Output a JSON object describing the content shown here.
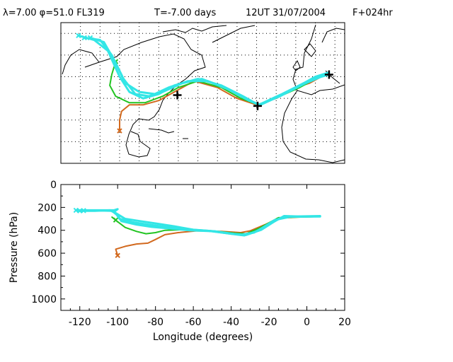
{
  "header": {
    "title": "λ=7.00 φ=51.0 FL319",
    "time_offset": "T=-7.00 days",
    "valid_time": "12UT 31/07/2004",
    "forecast": "F+024hr"
  },
  "colors": {
    "background": "#ffffff",
    "axes": "#000000",
    "series_orange": "#d2691e",
    "series_green": "#22c422",
    "series_cyan": "#33e6e6",
    "markers": "#000000"
  },
  "chart_data": [
    {
      "type": "map",
      "title": "",
      "projection": "lon-lat",
      "xlim": [
        -130,
        15
      ],
      "ylim": [
        10,
        75
      ],
      "grid": true,
      "grid_style": "dotted",
      "landmarks": [
        {
          "lon": 7.0,
          "lat": 51.0
        },
        {
          "lon": -29.5,
          "lat": 36.5
        },
        {
          "lon": -70.5,
          "lat": 41.5
        }
      ],
      "series": [
        {
          "color": "orange",
          "points": [
            [
              -100,
              25
            ],
            [
              -100,
              30
            ],
            [
              -99,
              34
            ],
            [
              -95,
              37
            ],
            [
              -88,
              37
            ],
            [
              -80,
              39
            ],
            [
              -72,
              43
            ],
            [
              -62,
              48
            ],
            [
              -50,
              45
            ],
            [
              -40,
              40
            ],
            [
              -30,
              37
            ],
            [
              -20,
              40
            ],
            [
              -10,
              45
            ],
            [
              -3,
              47
            ],
            [
              5,
              51
            ]
          ]
        },
        {
          "color": "green",
          "points": [
            [
              -102,
              57
            ],
            [
              -104,
              51
            ],
            [
              -105,
              46
            ],
            [
              -102,
              41
            ],
            [
              -95,
              38
            ],
            [
              -87,
              38
            ],
            [
              -78,
              41
            ],
            [
              -70,
              45
            ],
            [
              -60,
              48
            ],
            [
              -48,
              45
            ],
            [
              -38,
              40
            ],
            [
              -29,
              37
            ],
            [
              -18,
              41
            ],
            [
              -8,
              45
            ],
            [
              0,
              49
            ],
            [
              6,
              51
            ]
          ]
        },
        {
          "color": "cyan",
          "points": [
            [
              -121,
              69
            ],
            [
              -113,
              67
            ],
            [
              -106,
              62
            ],
            [
              -100,
              50
            ],
            [
              -95,
              43
            ],
            [
              -88,
              40
            ],
            [
              -80,
              42
            ],
            [
              -72,
              46
            ],
            [
              -60,
              49
            ],
            [
              -48,
              46
            ],
            [
              -37,
              41
            ],
            [
              -29,
              37
            ],
            [
              -18,
              41
            ],
            [
              -8,
              46
            ],
            [
              0,
              50
            ],
            [
              7,
              52
            ]
          ]
        },
        {
          "color": "cyan",
          "points": [
            [
              -118,
              68
            ],
            [
              -110,
              67
            ],
            [
              -104,
              60
            ],
            [
              -98,
              49
            ],
            [
              -92,
              42
            ],
            [
              -85,
              41
            ],
            [
              -78,
              43
            ],
            [
              -68,
              47
            ],
            [
              -58,
              49
            ],
            [
              -46,
              45
            ],
            [
              -36,
              40
            ],
            [
              -29,
              37
            ],
            [
              -17,
              42
            ],
            [
              -6,
              47
            ],
            [
              2,
              50
            ],
            [
              7,
              51
            ]
          ]
        },
        {
          "color": "cyan",
          "points": [
            [
              -115,
              68
            ],
            [
              -108,
              66
            ],
            [
              -103,
              58
            ],
            [
              -97,
              47
            ],
            [
              -90,
              43
            ],
            [
              -82,
              42
            ],
            [
              -75,
              45
            ],
            [
              -65,
              48
            ],
            [
              -55,
              48
            ],
            [
              -44,
              44
            ],
            [
              -34,
              39
            ],
            [
              -28,
              37
            ],
            [
              -16,
              42
            ],
            [
              -5,
              47
            ],
            [
              3,
              50
            ],
            [
              7,
              51
            ]
          ]
        }
      ]
    },
    {
      "type": "line",
      "title": "",
      "xlabel": "Longitude  (degrees)",
      "ylabel": "Pressure  (hPa)",
      "xlim": [
        -130,
        20
      ],
      "ylim": [
        1100,
        0
      ],
      "grid": false,
      "x_ticks": [
        -120,
        -100,
        -80,
        -60,
        -40,
        -20,
        0,
        20
      ],
      "y_ticks": [
        0,
        200,
        400,
        600,
        800,
        1000
      ],
      "series": [
        {
          "color": "orange",
          "points": [
            [
              -100,
              620
            ],
            [
              -101,
              565
            ],
            [
              -96,
              540
            ],
            [
              -90,
              520
            ],
            [
              -84,
              512
            ],
            [
              -80,
              480
            ],
            [
              -75,
              438
            ],
            [
              -68,
              420
            ],
            [
              -58,
              405
            ],
            [
              -45,
              410
            ],
            [
              -35,
              420
            ],
            [
              -30,
              405
            ],
            [
              -22,
              350
            ],
            [
              -15,
              295
            ],
            [
              -5,
              285
            ],
            [
              7,
              280
            ]
          ]
        },
        {
          "color": "green",
          "points": [
            [
              -101,
              310
            ],
            [
              -103,
              285
            ],
            [
              -100,
              325
            ],
            [
              -96,
              375
            ],
            [
              -90,
              410
            ],
            [
              -85,
              430
            ],
            [
              -80,
              420
            ],
            [
              -75,
              400
            ],
            [
              -65,
              395
            ],
            [
              -50,
              405
            ],
            [
              -38,
              425
            ],
            [
              -32,
              430
            ],
            [
              -25,
              380
            ],
            [
              -15,
              290
            ],
            [
              -5,
              285
            ],
            [
              7,
              280
            ]
          ]
        },
        {
          "color": "cyan",
          "points": [
            [
              -122,
              225
            ],
            [
              -114,
              225
            ],
            [
              -102,
              225
            ],
            [
              -100,
              215
            ],
            [
              -102,
              240
            ],
            [
              -96,
              300
            ],
            [
              -88,
              320
            ],
            [
              -80,
              340
            ],
            [
              -70,
              365
            ],
            [
              -60,
              395
            ],
            [
              -48,
              410
            ],
            [
              -35,
              440
            ],
            [
              -28,
              420
            ],
            [
              -18,
              330
            ],
            [
              -12,
              275
            ],
            [
              -3,
              280
            ],
            [
              7,
              280
            ]
          ]
        },
        {
          "color": "cyan",
          "points": [
            [
              -120,
              230
            ],
            [
              -112,
              230
            ],
            [
              -104,
              225
            ],
            [
              -101,
              250
            ],
            [
              -99,
              300
            ],
            [
              -92,
              330
            ],
            [
              -84,
              350
            ],
            [
              -75,
              370
            ],
            [
              -65,
              390
            ],
            [
              -52,
              405
            ],
            [
              -40,
              430
            ],
            [
              -32,
              440
            ],
            [
              -24,
              395
            ],
            [
              -15,
              300
            ],
            [
              -8,
              280
            ],
            [
              7,
              275
            ]
          ]
        },
        {
          "color": "cyan",
          "points": [
            [
              -118,
              228
            ],
            [
              -108,
              228
            ],
            [
              -103,
              230
            ],
            [
              -100,
              270
            ],
            [
              -98,
              320
            ],
            [
              -90,
              350
            ],
            [
              -82,
              370
            ],
            [
              -72,
              385
            ],
            [
              -62,
              400
            ],
            [
              -50,
              408
            ],
            [
              -38,
              435
            ],
            [
              -33,
              445
            ],
            [
              -26,
              405
            ],
            [
              -17,
              310
            ],
            [
              -9,
              282
            ],
            [
              7,
              278
            ]
          ]
        }
      ]
    }
  ]
}
